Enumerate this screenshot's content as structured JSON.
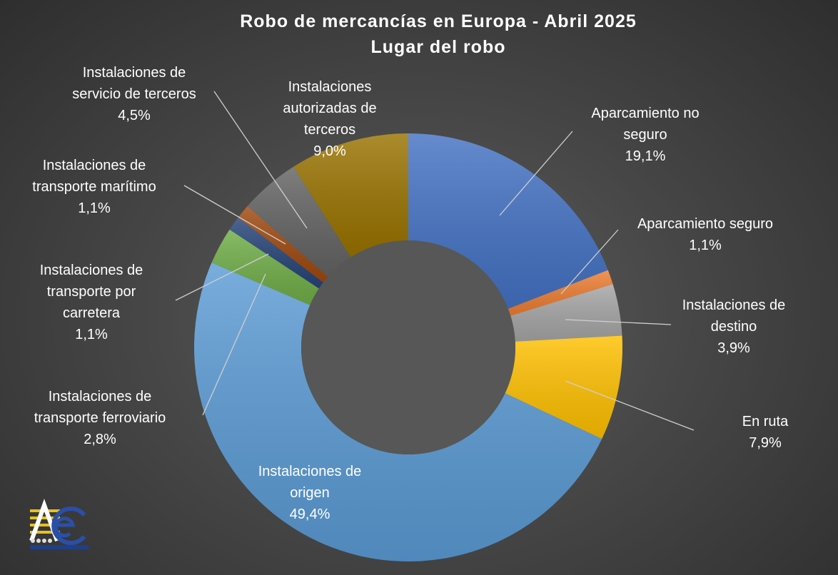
{
  "chart_data": {
    "type": "pie",
    "variant": "doughnut",
    "title": "Robo de mercancías en Europa - Abril 2025",
    "subtitle": "Lugar del robo",
    "slices": [
      {
        "label": [
          "Aparcamiento no",
          "seguro"
        ],
        "value_label": "19,1%",
        "value": 19.1,
        "color": "#4472c4"
      },
      {
        "label": [
          "Aparcamiento seguro"
        ],
        "value_label": "1,1%",
        "value": 1.1,
        "color": "#ed7d31"
      },
      {
        "label": [
          "Instalaciones de",
          "destino"
        ],
        "value_label": "3,9%",
        "value": 3.9,
        "color": "#a5a5a5"
      },
      {
        "label": [
          "En ruta"
        ],
        "value_label": "7,9%",
        "value": 7.9,
        "color": "#ffc000"
      },
      {
        "label": [
          "Instalaciones de",
          "origen"
        ],
        "value_label": "49,4%",
        "value": 49.4,
        "color": "#5b9bd5"
      },
      {
        "label": [
          "Instalaciones de",
          "transporte ferroviario"
        ],
        "value_label": "2,8%",
        "value": 2.8,
        "color": "#70ad47"
      },
      {
        "label": [
          "Instalaciones de",
          "transporte por",
          "carretera"
        ],
        "value_label": "1,1%",
        "value": 1.1,
        "color": "#264478"
      },
      {
        "label": [
          "Instalaciones de",
          "transporte marítimo"
        ],
        "value_label": "1,1%",
        "value": 1.1,
        "color": "#9e480e"
      },
      {
        "label": [
          "Instalaciones de",
          "servicio de terceros"
        ],
        "value_label": "4,5%",
        "value": 4.5,
        "color": "#636363"
      },
      {
        "label": [
          "Instalaciones",
          "autorizadas de",
          "terceros"
        ],
        "value_label": "9,0%",
        "value": 9.0,
        "color": "#997300"
      }
    ]
  },
  "logo": {
    "letters": "AeC",
    "name": "aec-logo"
  }
}
